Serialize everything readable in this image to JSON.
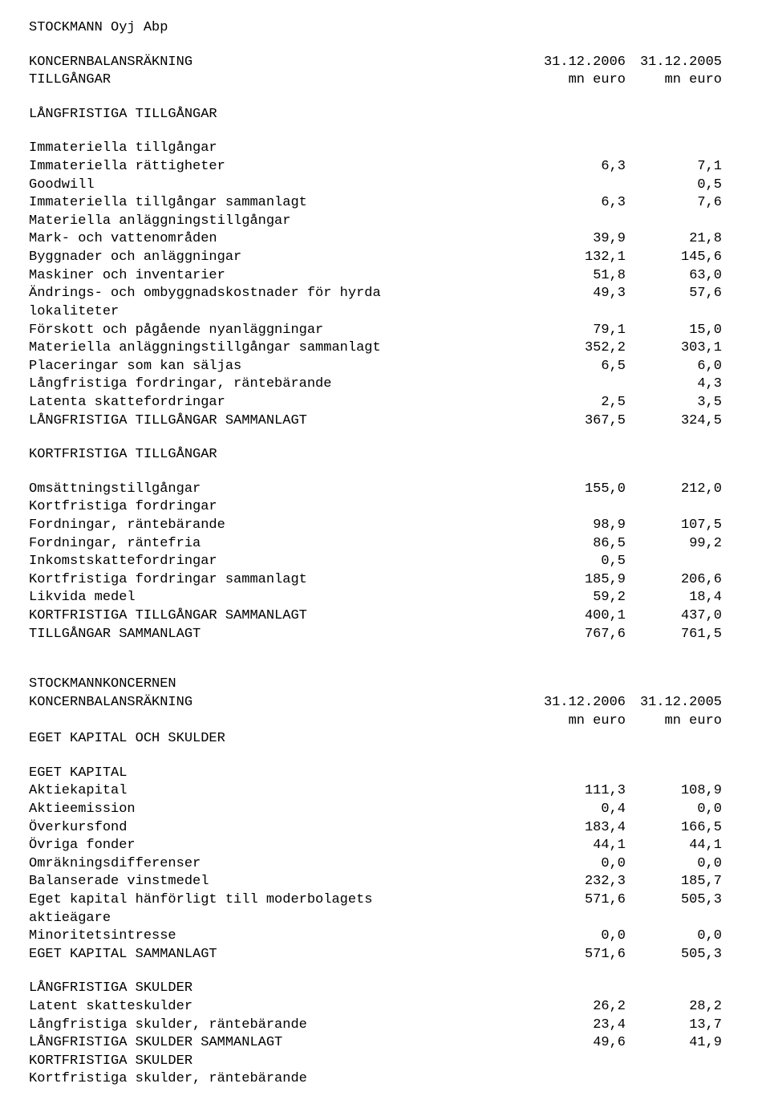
{
  "header": {
    "company": "STOCKMANN Oyj Abp"
  },
  "section1": {
    "title": "KONCERNBALANSRÄKNING",
    "subline": "TILLGÅNGAR",
    "date1": "31.12.2006",
    "date2": "31.12.2005",
    "unit1": "mn euro",
    "unit2": "mn euro"
  },
  "assets_long": {
    "heading": "LÅNGFRISTIGA TILLGÅNGAR",
    "sub1": "Immateriella tillgångar",
    "rows": [
      {
        "label": "Immateriella rättigheter",
        "v1": "6,3",
        "v2": "7,1"
      },
      {
        "label": "Goodwill",
        "v1": "",
        "v2": "0,5"
      },
      {
        "label": "Immateriella tillgångar sammanlagt",
        "v1": "6,3",
        "v2": "7,6"
      }
    ],
    "sub2": "Materiella anläggningstillgångar",
    "rows2": [
      {
        "label": "Mark- och vattenområden",
        "v1": "39,9",
        "v2": "21,8"
      },
      {
        "label": "Byggnader och anläggningar",
        "v1": "132,1",
        "v2": "145,6"
      },
      {
        "label": "Maskiner och inventarier",
        "v1": "51,8",
        "v2": "63,0"
      },
      {
        "label": "Ändrings- och ombyggnadskostnader för hyrda\nlokaliteter",
        "v1": "49,3",
        "v2": "57,6"
      },
      {
        "label": "Förskott och pågående nyanläggningar",
        "v1": "79,1",
        "v2": "15,0"
      },
      {
        "label": "Materiella anläggningstillgångar sammanlagt",
        "v1": "352,2",
        "v2": "303,1"
      },
      {
        "label": "Placeringar som kan säljas",
        "v1": "6,5",
        "v2": "6,0"
      },
      {
        "label": "Långfristiga fordringar, räntebärande",
        "v1": "",
        "v2": "4,3"
      },
      {
        "label": "Latenta skattefordringar",
        "v1": "2,5",
        "v2": "3,5"
      },
      {
        "label": "LÅNGFRISTIGA TILLGÅNGAR SAMMANLAGT",
        "v1": "367,5",
        "v2": "324,5"
      }
    ]
  },
  "assets_short": {
    "heading": "KORTFRISTIGA TILLGÅNGAR",
    "rows": [
      {
        "label": "Omsättningstillgångar",
        "v1": "155,0",
        "v2": "212,0"
      },
      {
        "label": "Kortfristiga fordringar",
        "v1": "",
        "v2": ""
      },
      {
        "label": "Fordningar, räntebärande",
        "v1": "98,9",
        "v2": "107,5"
      },
      {
        "label": "Fordningar, räntefria",
        "v1": "86,5",
        "v2": "99,2"
      },
      {
        "label": "Inkomstskattefordringar",
        "v1": "0,5",
        "v2": ""
      },
      {
        "label": "Kortfristiga fordringar sammanlagt",
        "v1": "185,9",
        "v2": "206,6"
      },
      {
        "label": "Likvida medel",
        "v1": "59,2",
        "v2": "18,4"
      },
      {
        "label": "KORTFRISTIGA TILLGÅNGAR SAMMANLAGT",
        "v1": "400,1",
        "v2": "437,0"
      },
      {
        "label": "TILLGÅNGAR SAMMANLAGT",
        "v1": "767,6",
        "v2": "761,5"
      }
    ]
  },
  "section2": {
    "company": "STOCKMANNKONCERNEN",
    "title": "KONCERNBALANSRÄKNING",
    "date1": "31.12.2006",
    "date2": "31.12.2005",
    "unit1": "mn euro",
    "unit2": "mn euro",
    "subline": "EGET KAPITAL OCH SKULDER"
  },
  "equity": {
    "heading": "EGET KAPITAL",
    "rows": [
      {
        "label": "Aktiekapital",
        "v1": "111,3",
        "v2": "108,9"
      },
      {
        "label": "Aktieemission",
        "v1": "0,4",
        "v2": "0,0"
      },
      {
        "label": "Överkursfond",
        "v1": "183,4",
        "v2": "166,5"
      },
      {
        "label": "Övriga fonder",
        "v1": "44,1",
        "v2": "44,1"
      },
      {
        "label": "Omräkningsdifferenser",
        "v1": "0,0",
        "v2": "0,0"
      },
      {
        "label": "Balanserade vinstmedel",
        "v1": "232,3",
        "v2": "185,7"
      },
      {
        "label": "Eget kapital hänförligt till moderbolagets\naktieägare",
        "v1": "571,6",
        "v2": "505,3"
      },
      {
        "label": "Minoritetsintresse",
        "v1": "0,0",
        "v2": "0,0"
      },
      {
        "label": "EGET KAPITAL SAMMANLAGT",
        "v1": "571,6",
        "v2": "505,3"
      }
    ]
  },
  "liab_long": {
    "heading": "LÅNGFRISTIGA SKULDER",
    "rows": [
      {
        "label": "Latent skatteskulder",
        "v1": "26,2",
        "v2": "28,2"
      },
      {
        "label": "Långfristiga skulder, räntebärande",
        "v1": "23,4",
        "v2": "13,7"
      },
      {
        "label": "LÅNGFRISTIGA SKULDER SAMMANLAGT",
        "v1": "49,6",
        "v2": "41,9"
      }
    ]
  },
  "liab_short": {
    "heading": "KORTFRISTIGA SKULDER",
    "rows": [
      {
        "label": "Kortfristiga skulder, räntebärande",
        "v1": "",
        "v2": ""
      }
    ]
  }
}
